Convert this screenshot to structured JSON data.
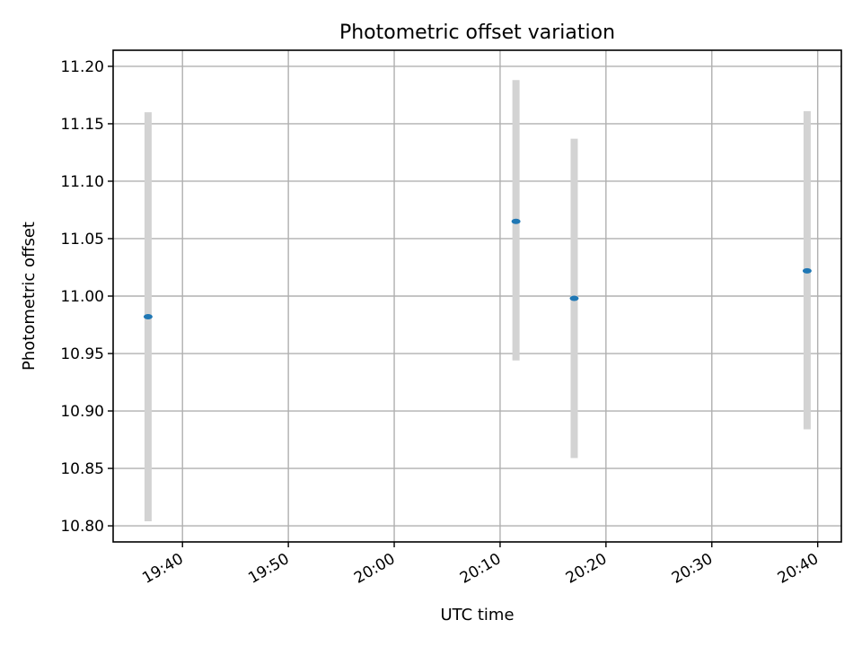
{
  "chart_data": {
    "type": "scatter",
    "title": "Photometric offset variation",
    "xlabel": "UTC time",
    "ylabel": "Photometric offset",
    "x_axis_type": "time",
    "xlim": [
      "19:33:27",
      "20:42:14"
    ],
    "ylim": [
      10.786,
      11.214
    ],
    "xticks": [
      "19:40",
      "19:50",
      "20:00",
      "20:10",
      "20:20",
      "20:30",
      "20:40"
    ],
    "yticks": [
      10.8,
      10.85,
      10.9,
      10.95,
      11.0,
      11.05,
      11.1,
      11.15,
      11.2
    ],
    "ytick_labels": [
      "10.80",
      "10.85",
      "10.90",
      "10.95",
      "11.00",
      "11.05",
      "11.10",
      "11.15",
      "11.20"
    ],
    "grid": true,
    "marker_color": "#1f77b4",
    "errorbar_color": "#d3d3d3",
    "series": [
      {
        "points": [
          {
            "x": "19:36:45",
            "y": 10.982,
            "ylow": 10.804,
            "yhigh": 11.16
          },
          {
            "x": "20:11:30",
            "y": 11.065,
            "ylow": 10.944,
            "yhigh": 11.188
          },
          {
            "x": "20:17:00",
            "y": 10.998,
            "ylow": 10.859,
            "yhigh": 11.137
          },
          {
            "x": "20:39:00",
            "y": 11.022,
            "ylow": 10.884,
            "yhigh": 11.161
          }
        ]
      }
    ]
  }
}
